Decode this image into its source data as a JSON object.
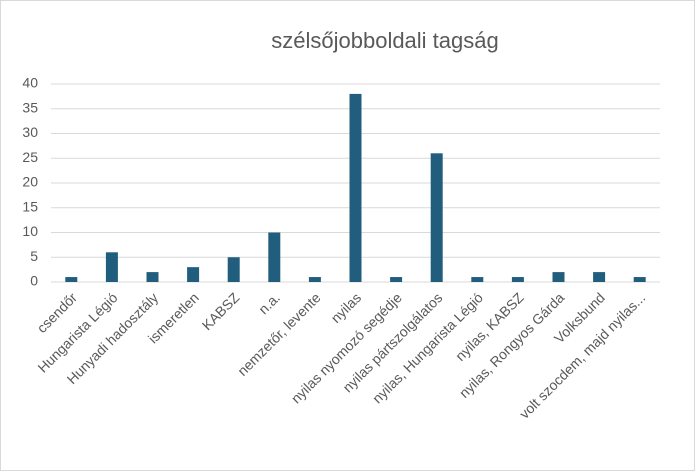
{
  "chart_data": {
    "type": "bar",
    "title": "szélsőjobboldali tagság",
    "categories": [
      "csendőr",
      "Hungarista Légió",
      "Hunyadi hadosztály",
      "ismeretlen",
      "KABSZ",
      "n.a.",
      "nemzetőr, levente",
      "nyilas",
      "nyilas nyomozó segédje",
      "nyilas pártszolgálatos",
      "nyilas, Hungarista Légió",
      "nyilas, KABSZ",
      "nyilas, Rongyos Gárda",
      "Volksbund",
      "volt szocdem, majd nyilas..."
    ],
    "values": [
      1,
      6,
      2,
      3,
      5,
      10,
      1,
      38,
      1,
      26,
      1,
      1,
      2,
      2,
      1
    ],
    "color": "#215e7e",
    "ylim": [
      0,
      40
    ],
    "yticks": [
      0,
      5,
      10,
      15,
      20,
      25,
      30,
      35,
      40
    ],
    "grid": true
  }
}
